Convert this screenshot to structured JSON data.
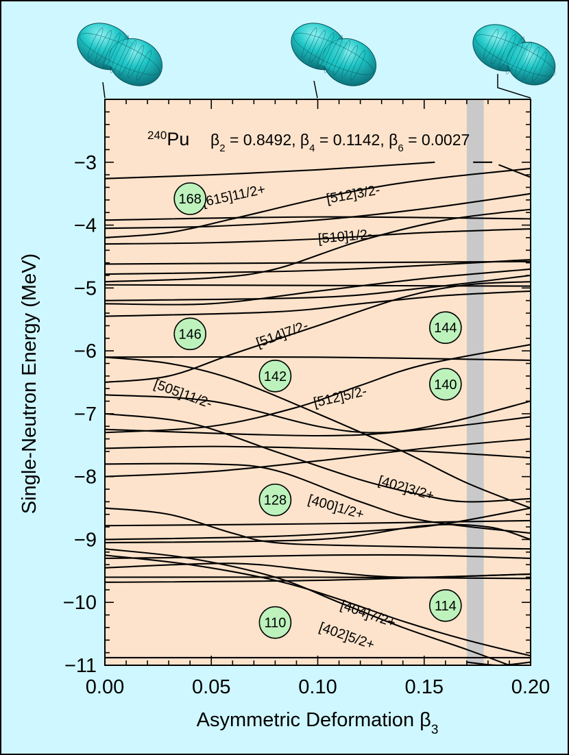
{
  "colors": {
    "page_background": "#cff7ff",
    "plot_background": "#fde3cb",
    "shape_color": "#1fc6c6",
    "magic_circle_fill": "#bdf2bd",
    "shaded_band": "#c9c9c9"
  },
  "chart_data": {
    "type": "line",
    "title": {
      "nucleus_mass": "240",
      "nucleus_symbol": "Pu",
      "beta2": "β2 = 0.8492,",
      "beta4": "β4 = 0.1142,",
      "beta6": "β6 = 0.0027",
      "beta2_sym": "β",
      "beta2_sub": "2",
      "beta2_val": " = 0.8492, ",
      "beta4_sym": "β",
      "beta4_sub": "4",
      "beta4_val": " = 0.1142, ",
      "beta6_sym": "β",
      "beta6_sub": "6",
      "beta6_val": " = 0.0027"
    },
    "xlabel": {
      "text": "Asymmetric Deformation ",
      "symbol": "β",
      "sub": "3"
    },
    "ylabel": "Single-Neutron Energy (MeV)",
    "xlim": [
      0.0,
      0.2
    ],
    "ylim": [
      -11.0,
      -2.0
    ],
    "x_ticks": [
      {
        "v": 0.0,
        "label": "0.00"
      },
      {
        "v": 0.05,
        "label": "0.05"
      },
      {
        "v": 0.1,
        "label": "0.10"
      },
      {
        "v": 0.15,
        "label": "0.15"
      },
      {
        "v": 0.2,
        "label": "0.20"
      }
    ],
    "y_ticks": [
      {
        "v": -3,
        "label": "−3"
      },
      {
        "v": -4,
        "label": "−4"
      },
      {
        "v": -5,
        "label": "−5"
      },
      {
        "v": -6,
        "label": "−6"
      },
      {
        "v": -7,
        "label": "−7"
      },
      {
        "v": -8,
        "label": "−8"
      },
      {
        "v": -9,
        "label": "−9"
      },
      {
        "v": -10,
        "label": "−10"
      },
      {
        "v": -11,
        "label": "−11"
      }
    ],
    "shaded_band_x": [
      0.17,
      0.178
    ],
    "shape_markers_x": [
      0.0,
      0.1,
      0.2
    ],
    "series": [
      {
        "points": [
          [
            0,
            -3.26
          ],
          [
            0.05,
            -3.2
          ],
          [
            0.1,
            -3.12
          ],
          [
            0.155,
            -3.0
          ]
        ]
      },
      {
        "points": [
          [
            0.173,
            -3.0
          ],
          [
            0.182,
            -3.0
          ]
        ]
      },
      {
        "points": [
          [
            0.185,
            -3.04
          ],
          [
            0.2,
            -3.24
          ]
        ]
      },
      {
        "points": [
          [
            0,
            -4.2
          ],
          [
            0.03,
            -4.12
          ],
          [
            0.06,
            -3.9
          ],
          [
            0.1,
            -3.58
          ],
          [
            0.13,
            -3.38
          ],
          [
            0.16,
            -3.24
          ],
          [
            0.2,
            -3.1
          ]
        ]
      },
      {
        "points": [
          [
            0,
            -3.92
          ],
          [
            0.1,
            -3.87
          ],
          [
            0.2,
            -3.9
          ]
        ]
      },
      {
        "points": [
          [
            0,
            -4.05
          ],
          [
            0.05,
            -4.02
          ],
          [
            0.1,
            -3.92
          ],
          [
            0.15,
            -3.74
          ],
          [
            0.2,
            -3.5
          ]
        ]
      },
      {
        "points": [
          [
            0,
            -4.3
          ],
          [
            0.05,
            -4.28
          ],
          [
            0.1,
            -4.22
          ],
          [
            0.15,
            -4.12
          ],
          [
            0.2,
            -4.06
          ]
        ]
      },
      {
        "points": [
          [
            0,
            -4.62
          ],
          [
            0.2,
            -4.58
          ]
        ]
      },
      {
        "points": [
          [
            0,
            -4.9
          ],
          [
            0.05,
            -4.84
          ],
          [
            0.08,
            -4.7
          ],
          [
            0.12,
            -4.25
          ],
          [
            0.16,
            -3.92
          ],
          [
            0.2,
            -3.75
          ]
        ]
      },
      {
        "points": [
          [
            0,
            -4.78
          ],
          [
            0.1,
            -4.72
          ],
          [
            0.2,
            -4.55
          ]
        ]
      },
      {
        "points": [
          [
            0,
            -4.95
          ],
          [
            0.1,
            -4.96
          ],
          [
            0.2,
            -4.97
          ]
        ]
      },
      {
        "points": [
          [
            0,
            -5.2
          ],
          [
            0.1,
            -5.15
          ],
          [
            0.15,
            -5.0
          ],
          [
            0.2,
            -4.8
          ]
        ]
      },
      {
        "points": [
          [
            0,
            -5.45
          ],
          [
            0.08,
            -5.38
          ],
          [
            0.12,
            -5.25
          ],
          [
            0.16,
            -5.12
          ],
          [
            0.2,
            -5.05
          ]
        ]
      },
      {
        "points": [
          [
            0,
            -5.25
          ],
          [
            0.05,
            -5.25
          ],
          [
            0.1,
            -5.05
          ],
          [
            0.15,
            -4.85
          ],
          [
            0.2,
            -4.7
          ]
        ]
      },
      {
        "points": [
          [
            0,
            -6.5
          ],
          [
            0.03,
            -6.4
          ],
          [
            0.06,
            -6.05
          ],
          [
            0.1,
            -5.6
          ],
          [
            0.14,
            -5.15
          ],
          [
            0.17,
            -4.95
          ],
          [
            0.2,
            -4.9
          ]
        ]
      },
      {
        "points": [
          [
            0,
            -6.1
          ],
          [
            0.1,
            -6.1
          ],
          [
            0.2,
            -6.15
          ]
        ]
      },
      {
        "points": [
          [
            0,
            -6.1
          ],
          [
            0.03,
            -6.2
          ],
          [
            0.06,
            -6.45
          ],
          [
            0.1,
            -7.0
          ],
          [
            0.14,
            -7.6
          ],
          [
            0.17,
            -8.1
          ],
          [
            0.2,
            -8.5
          ]
        ]
      },
      {
        "points": [
          [
            0,
            -7.3
          ],
          [
            0.05,
            -7.2
          ],
          [
            0.09,
            -6.9
          ],
          [
            0.12,
            -6.55
          ],
          [
            0.15,
            -6.22
          ],
          [
            0.2,
            -5.9
          ]
        ]
      },
      {
        "points": [
          [
            0,
            -6.7
          ],
          [
            0.05,
            -6.8
          ],
          [
            0.1,
            -7.2
          ],
          [
            0.13,
            -7.3
          ],
          [
            0.16,
            -7.15
          ],
          [
            0.2,
            -6.8
          ]
        ]
      },
      {
        "points": [
          [
            0,
            -7.0
          ],
          [
            0.04,
            -7.15
          ],
          [
            0.08,
            -7.6
          ],
          [
            0.12,
            -8.05
          ],
          [
            0.15,
            -8.3
          ],
          [
            0.17,
            -8.4
          ],
          [
            0.2,
            -8.35
          ]
        ]
      },
      {
        "points": [
          [
            0,
            -7.25
          ],
          [
            0.1,
            -7.35
          ],
          [
            0.15,
            -7.25
          ],
          [
            0.2,
            -7.05
          ]
        ]
      },
      {
        "points": [
          [
            0,
            -7.55
          ],
          [
            0.05,
            -7.52
          ],
          [
            0.1,
            -7.55
          ],
          [
            0.15,
            -7.6
          ],
          [
            0.2,
            -7.7
          ]
        ]
      },
      {
        "points": [
          [
            0,
            -7.8
          ],
          [
            0.05,
            -7.8
          ],
          [
            0.08,
            -7.9
          ],
          [
            0.12,
            -8.4
          ],
          [
            0.15,
            -8.7
          ],
          [
            0.2,
            -8.9
          ]
        ]
      },
      {
        "points": [
          [
            0,
            -8.0
          ],
          [
            0.05,
            -7.92
          ],
          [
            0.1,
            -7.75
          ],
          [
            0.15,
            -7.55
          ],
          [
            0.2,
            -7.4
          ]
        ]
      },
      {
        "points": [
          [
            0,
            -8.5
          ],
          [
            0.03,
            -8.6
          ],
          [
            0.06,
            -8.9
          ],
          [
            0.08,
            -9.05
          ],
          [
            0.12,
            -9.1
          ],
          [
            0.2,
            -9.15
          ]
        ]
      },
      {
        "points": [
          [
            0,
            -8.78
          ],
          [
            0.1,
            -8.75
          ],
          [
            0.2,
            -8.7
          ]
        ]
      },
      {
        "points": [
          [
            0,
            -9.0
          ],
          [
            0.08,
            -8.95
          ],
          [
            0.13,
            -8.85
          ],
          [
            0.16,
            -8.75
          ],
          [
            0.2,
            -8.5
          ]
        ]
      },
      {
        "points": [
          [
            0,
            -9.05
          ],
          [
            0.1,
            -9.0
          ],
          [
            0.15,
            -8.78
          ],
          [
            0.18,
            -8.8
          ],
          [
            0.2,
            -9.0
          ]
        ]
      },
      {
        "points": [
          [
            0,
            -9.3
          ],
          [
            0.05,
            -9.28
          ],
          [
            0.1,
            -9.25
          ],
          [
            0.15,
            -9.25
          ],
          [
            0.2,
            -9.3
          ]
        ]
      },
      {
        "points": [
          [
            0,
            -9.45
          ],
          [
            0.06,
            -9.38
          ],
          [
            0.1,
            -9.5
          ],
          [
            0.14,
            -9.6
          ],
          [
            0.2,
            -9.55
          ]
        ]
      },
      {
        "points": [
          [
            0,
            -9.25
          ],
          [
            0.04,
            -9.4
          ],
          [
            0.08,
            -9.65
          ],
          [
            0.11,
            -9.95
          ],
          [
            0.14,
            -10.3
          ],
          [
            0.17,
            -10.6
          ],
          [
            0.2,
            -10.85
          ]
        ]
      },
      {
        "points": [
          [
            0,
            -9.6
          ],
          [
            0.1,
            -9.6
          ],
          [
            0.2,
            -9.62
          ]
        ]
      },
      {
        "points": [
          [
            0,
            -9.68
          ],
          [
            0.1,
            -9.65
          ],
          [
            0.2,
            -9.55
          ]
        ]
      },
      {
        "points": [
          [
            0,
            -9.15
          ],
          [
            0.04,
            -9.3
          ],
          [
            0.08,
            -9.6
          ],
          [
            0.11,
            -10.0
          ],
          [
            0.14,
            -10.4
          ],
          [
            0.17,
            -10.75
          ],
          [
            0.19,
            -11.0
          ]
        ]
      },
      {
        "points": [
          [
            0,
            -10.88
          ],
          [
            0.1,
            -10.88
          ],
          [
            0.2,
            -10.88
          ]
        ]
      },
      {
        "points": [
          [
            0.17,
            -10.95
          ],
          [
            0.185,
            -11.0
          ],
          [
            0.2,
            -10.95
          ]
        ]
      }
    ],
    "annotations": [
      {
        "text": "[615]11/2+",
        "x": 0.061,
        "y": -3.6,
        "angle": -12
      },
      {
        "text": "[512]3/2-",
        "x": 0.117,
        "y": -3.58,
        "angle": -10
      },
      {
        "text": "[510]1/2-",
        "x": 0.113,
        "y": -4.25,
        "angle": -5
      },
      {
        "text": "[514]7/2-",
        "x": 0.084,
        "y": -5.8,
        "angle": -20
      },
      {
        "text": "[505]11/2-",
        "x": 0.036,
        "y": -6.75,
        "angle": 20
      },
      {
        "text": "[512]5/2-",
        "x": 0.111,
        "y": -6.8,
        "angle": -13
      },
      {
        "text": "[402]3/2+",
        "x": 0.141,
        "y": -8.25,
        "angle": 16
      },
      {
        "text": "[400]1/2+",
        "x": 0.108,
        "y": -8.55,
        "angle": 16
      },
      {
        "text": "[404]7/2+",
        "x": 0.123,
        "y": -10.25,
        "angle": 19
      },
      {
        "text": "[402]5/2+",
        "x": 0.113,
        "y": -10.6,
        "angle": 19
      }
    ],
    "magic_numbers": [
      {
        "label": "168",
        "x": 0.04,
        "y": -3.58
      },
      {
        "label": "146",
        "x": 0.04,
        "y": -5.73
      },
      {
        "label": "142",
        "x": 0.08,
        "y": -6.4
      },
      {
        "label": "144",
        "x": 0.16,
        "y": -5.63
      },
      {
        "label": "140",
        "x": 0.16,
        "y": -6.53
      },
      {
        "label": "128",
        "x": 0.08,
        "y": -8.37
      },
      {
        "label": "110",
        "x": 0.08,
        "y": -10.32
      },
      {
        "label": "114",
        "x": 0.16,
        "y": -10.05
      }
    ]
  }
}
